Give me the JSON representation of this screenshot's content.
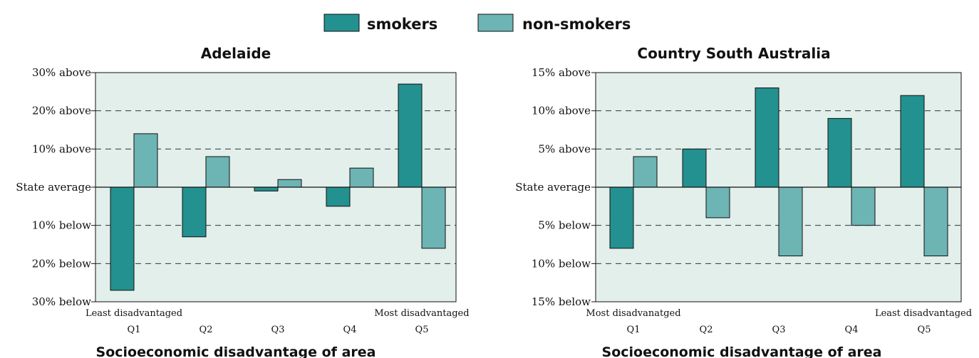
{
  "legend": {
    "items": [
      {
        "label": "smokers",
        "color": "#23918f"
      },
      {
        "label": "non-smokers",
        "color": "#6db4b4"
      }
    ]
  },
  "colors": {
    "plot_bg": "#e2efea",
    "border": "#111111"
  },
  "chart_data": [
    {
      "type": "bar",
      "title": "Adelaide",
      "xlabel": "Socioeconomic disadvantage of area",
      "categories": [
        "Q1",
        "Q2",
        "Q3",
        "Q4",
        "Q5"
      ],
      "left_note": "Least disadvantaged",
      "right_note": "Most disadvantaged",
      "ylim": [
        -30,
        30
      ],
      "yticks": [
        {
          "value": 30,
          "label": "30% above"
        },
        {
          "value": 20,
          "label": "20% above"
        },
        {
          "value": 10,
          "label": "10% above"
        },
        {
          "value": 0,
          "label": "State average"
        },
        {
          "value": -10,
          "label": "10% below"
        },
        {
          "value": -20,
          "label": "20% below"
        },
        {
          "value": -30,
          "label": "30% below"
        }
      ],
      "grid": true,
      "series": [
        {
          "name": "smokers",
          "values": [
            -27,
            -13,
            -1,
            -5,
            27
          ]
        },
        {
          "name": "non-smokers",
          "values": [
            14,
            8,
            2,
            5,
            -16
          ]
        }
      ]
    },
    {
      "type": "bar",
      "title": "Country South Australia",
      "xlabel": "Socioeconomic disadvantage of area",
      "categories": [
        "Q1",
        "Q2",
        "Q3",
        "Q4",
        "Q5"
      ],
      "left_note": "Most disadvanatged",
      "right_note": "Least disadvantaged",
      "ylim": [
        -15,
        15
      ],
      "yticks": [
        {
          "value": 15,
          "label": "15% above"
        },
        {
          "value": 10,
          "label": "10% above"
        },
        {
          "value": 5,
          "label": "5% above"
        },
        {
          "value": 0,
          "label": "State average"
        },
        {
          "value": -5,
          "label": "5% below"
        },
        {
          "value": -10,
          "label": "10% below"
        },
        {
          "value": -15,
          "label": "15% below"
        }
      ],
      "grid": true,
      "series": [
        {
          "name": "smokers",
          "values": [
            -8,
            5,
            13,
            9,
            12
          ]
        },
        {
          "name": "non-smokers",
          "values": [
            4,
            -4,
            -9,
            -5,
            -9
          ]
        }
      ]
    }
  ]
}
